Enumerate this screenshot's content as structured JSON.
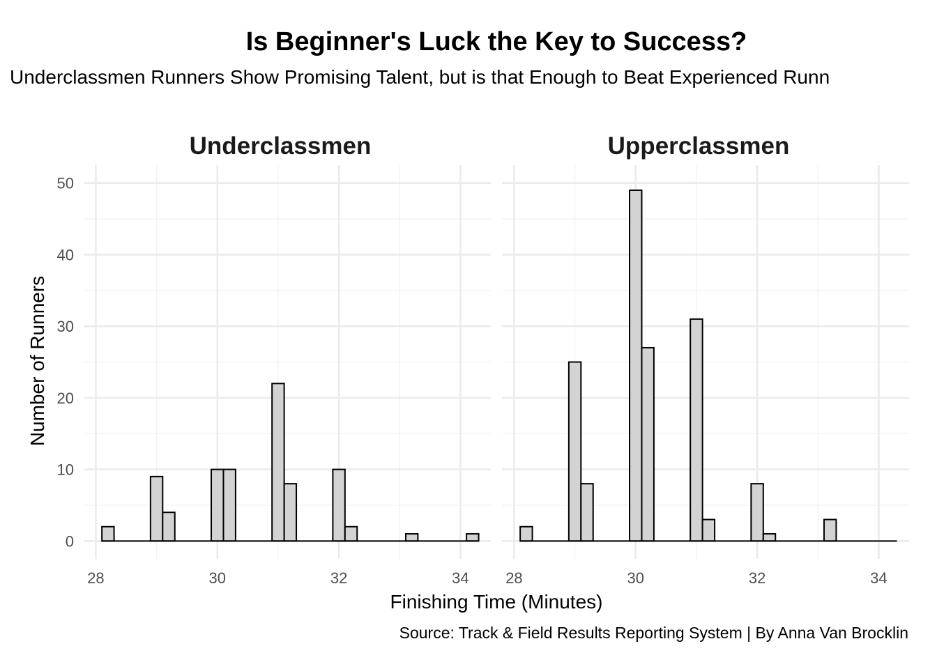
{
  "chart_data": {
    "type": "bar",
    "title": "Is Beginner's Luck the Key to Success?",
    "subtitle": "Underclassmen Runners Show Promising Talent, but is that Enough to Beat Experienced Runn",
    "xlabel": "Finishing Time (Minutes)",
    "ylabel": "Number of Runners",
    "caption": "Source: Track & Field Results Reporting System | By Anna Van Brocklin",
    "xlim": [
      27.8,
      34.5
    ],
    "ylim": [
      -2.5,
      52.5
    ],
    "x_ticks": [
      "28",
      "30",
      "32",
      "34"
    ],
    "y_ticks": [
      "0",
      "10",
      "20",
      "30",
      "40",
      "50"
    ],
    "bin_start": 28.1,
    "bin_width": 0.2,
    "bin_count": 31,
    "grid": true,
    "bar_fill": "#d3d3d3",
    "bar_stroke": "#000000",
    "panels": [
      {
        "label": "Underclassmen",
        "counts": [
          2,
          0,
          0,
          0,
          9,
          4,
          0,
          0,
          0,
          10,
          10,
          0,
          0,
          0,
          22,
          8,
          0,
          0,
          0,
          10,
          2,
          0,
          0,
          0,
          0,
          1,
          0,
          0,
          0,
          0,
          1
        ]
      },
      {
        "label": "Upperclassmen",
        "counts": [
          2,
          0,
          0,
          0,
          25,
          8,
          0,
          0,
          0,
          49,
          27,
          0,
          0,
          0,
          31,
          3,
          0,
          0,
          0,
          8,
          1,
          0,
          0,
          0,
          0,
          3,
          0,
          0,
          0,
          0,
          0
        ]
      }
    ]
  }
}
